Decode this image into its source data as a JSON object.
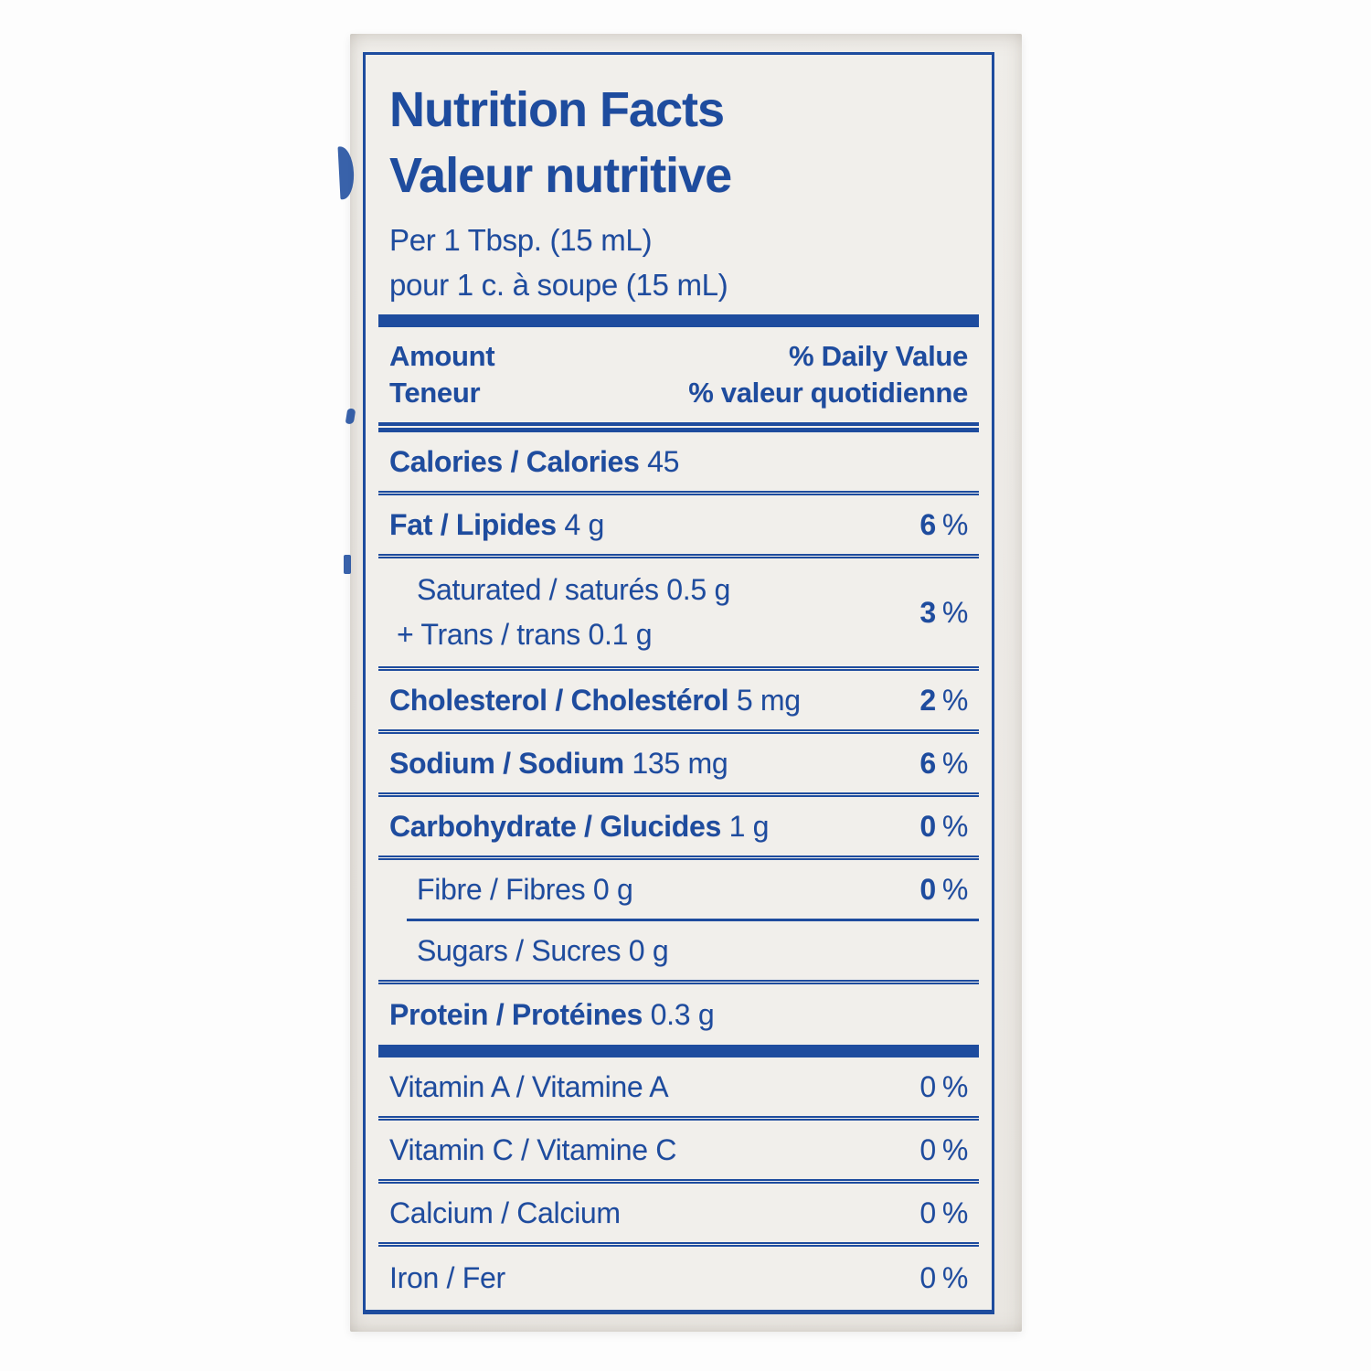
{
  "colors": {
    "ink_blue": "#1e4c9e",
    "label_background": "#f1efeb",
    "package_background": "#ebe8e4"
  },
  "header": {
    "title_en": "Nutrition Facts",
    "title_fr": "Valeur nutritive",
    "serving_en": "Per 1 Tbsp. (15 mL)",
    "serving_fr": "pour 1 c. à soupe (15 mL)"
  },
  "columns": {
    "amount_en": "Amount",
    "amount_fr": "Teneur",
    "dv_en": "% Daily Value",
    "dv_fr": "% valeur quotidienne"
  },
  "table": {
    "percent_sign": "%",
    "rows": [
      {
        "id": "calories",
        "bold": "Calories / Calories",
        "reg": " 45",
        "dv": null,
        "indent": false,
        "sep": "thin"
      },
      {
        "id": "fat",
        "bold": "Fat / Lipides",
        "reg": " 4 g",
        "dv": "6",
        "dv_bold": true,
        "indent": false,
        "sep": "thin"
      },
      {
        "id": "saturated-trans",
        "lines": [
          {
            "reg": "Saturated / saturés 0.5 g"
          },
          {
            "reg": "+ Trans / trans 0.1 g",
            "hang": true
          }
        ],
        "dv": "3",
        "dv_bold": true,
        "indent": true,
        "sep": "thin"
      },
      {
        "id": "cholesterol",
        "bold": "Cholesterol / Cholestérol",
        "reg": " 5 mg",
        "dv": "2",
        "dv_bold": true,
        "indent": false,
        "sep": "thin"
      },
      {
        "id": "sodium",
        "bold": "Sodium / Sodium",
        "reg": " 135 mg",
        "dv": "6",
        "dv_bold": true,
        "indent": false,
        "sep": "thin"
      },
      {
        "id": "carbohydrate",
        "bold": "Carbohydrate / Glucides",
        "reg": " 1 g",
        "dv": "0",
        "dv_bold": true,
        "indent": false,
        "sep": "thin"
      },
      {
        "id": "fibre",
        "reg": "Fibre / Fibres 0 g",
        "dv": "0",
        "dv_bold": true,
        "indent": true,
        "sep": "sub"
      },
      {
        "id": "sugars",
        "reg": "Sugars / Sucres 0 g",
        "dv": null,
        "indent": true,
        "sep": "thin"
      },
      {
        "id": "protein",
        "bold": "Protein / Protéines",
        "reg": " 0.3 g",
        "dv": null,
        "indent": false,
        "sep": "thick"
      },
      {
        "id": "vitamin-a",
        "reg": "Vitamin A / Vitamine A",
        "dv": "0",
        "dv_bold": false,
        "indent": false,
        "sep": "thin"
      },
      {
        "id": "vitamin-c",
        "reg": "Vitamin C / Vitamine C",
        "dv": "0",
        "dv_bold": false,
        "indent": false,
        "sep": "thin"
      },
      {
        "id": "calcium",
        "reg": "Calcium / Calcium",
        "dv": "0",
        "dv_bold": false,
        "indent": false,
        "sep": "thin"
      },
      {
        "id": "iron",
        "reg": "Iron / Fer",
        "dv": "0",
        "dv_bold": false,
        "indent": false,
        "sep": "none"
      }
    ]
  }
}
